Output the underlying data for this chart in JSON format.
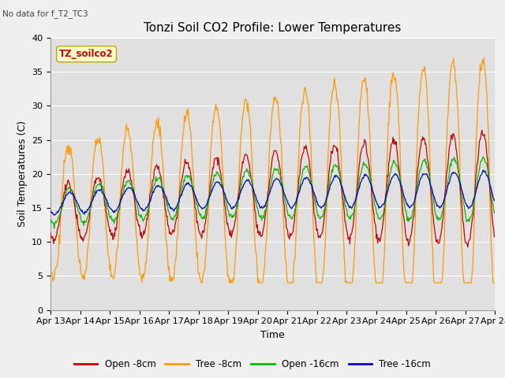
{
  "title": "Tonzi Soil CO2 Profile: Lower Temperatures",
  "subtitle": "No data for f_T2_TC3",
  "xlabel": "Time",
  "ylabel": "Soil Temperatures (C)",
  "ylim": [
    0,
    40
  ],
  "x_tick_labels": [
    "Apr 13",
    "Apr 14",
    "Apr 15",
    "Apr 16",
    "Apr 17",
    "Apr 18",
    "Apr 19",
    "Apr 20",
    "Apr 21",
    "Apr 22",
    "Apr 23",
    "Apr 24",
    "Apr 25",
    "Apr 26",
    "Apr 27",
    "Apr 28"
  ],
  "legend_labels": [
    "Open -8cm",
    "Tree -8cm",
    "Open -16cm",
    "Tree -16cm"
  ],
  "legend_colors": [
    "#cc0000",
    "#ff9900",
    "#00bb00",
    "#0000cc"
  ],
  "annotation_text": "TZ_soilco2",
  "annotation_box_color": "#ffffcc",
  "annotation_text_color": "#cc0000",
  "title_fontsize": 11,
  "label_fontsize": 9,
  "tick_fontsize": 8
}
